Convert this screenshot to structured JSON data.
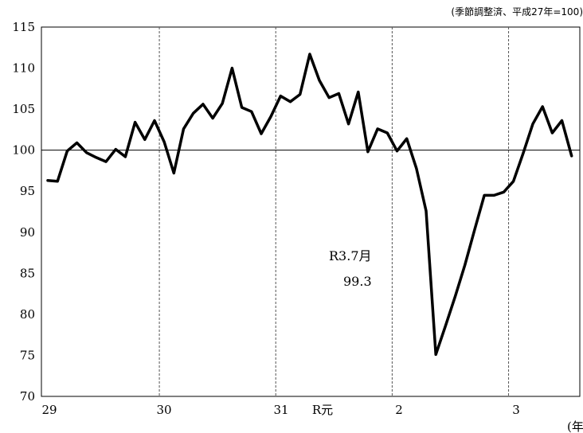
{
  "chart_data": {
    "type": "line",
    "title": "",
    "subtitle": "(季節調整済、平成27年=100)",
    "xlabel": "(年",
    "ylabel": "",
    "ylim": [
      70,
      115
    ],
    "yticks": [
      "70",
      "75",
      "80",
      "85",
      "90",
      "95",
      "100",
      "105",
      "110",
      "115"
    ],
    "year_labels": [
      "29",
      "30",
      "31",
      "R元",
      "2",
      "3"
    ],
    "reference_line": 100,
    "grid": "vertical dashed lines at year boundaries",
    "annotation": {
      "label": "R3.7月",
      "value": "99.3"
    },
    "series": [
      {
        "values": [
          96.3,
          96.2,
          99.9,
          100.9,
          99.7,
          99.1,
          98.6,
          100.1,
          99.2,
          103.4,
          101.3,
          103.6,
          101.0,
          97.2,
          102.6,
          104.5,
          105.6,
          103.9,
          105.7,
          110.0,
          105.2,
          104.7,
          102.0,
          104.1,
          106.6,
          105.9,
          106.8,
          111.7,
          108.5,
          106.4,
          106.9,
          103.2,
          107.1,
          99.8,
          102.6,
          102.1,
          99.9,
          101.4,
          97.8,
          92.6,
          75.1,
          78.6,
          82.2,
          86.0,
          90.3,
          94.5,
          94.5,
          94.9,
          96.2,
          99.6,
          103.2,
          105.3,
          102.1,
          103.6,
          99.3
        ]
      }
    ]
  }
}
